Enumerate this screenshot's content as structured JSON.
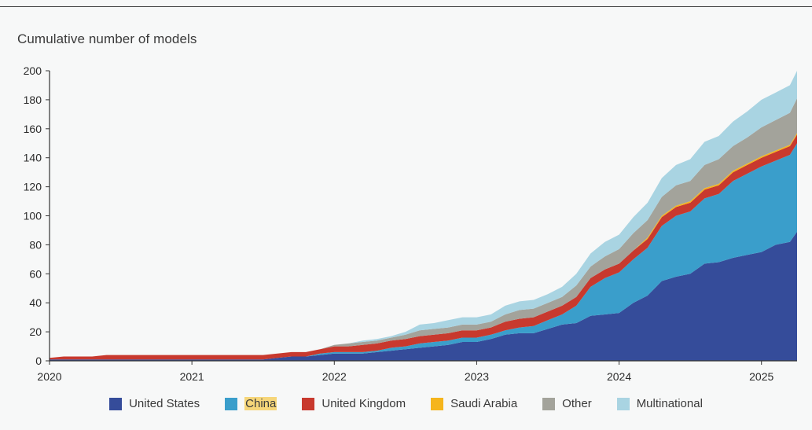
{
  "title": "Cumulative number of models",
  "chart_data": {
    "type": "area",
    "stacked": true,
    "title": "Cumulative number of models",
    "xlabel": "",
    "ylabel": "",
    "ylim": [
      0,
      200
    ],
    "xlim": [
      2020.0,
      2025.25
    ],
    "y_ticks": [
      0,
      20,
      40,
      60,
      80,
      100,
      120,
      140,
      160,
      180,
      200
    ],
    "x_ticks": [
      2020,
      2021,
      2022,
      2023,
      2024,
      2025
    ],
    "x_tick_labels": [
      "2020",
      "2021",
      "2022",
      "2023",
      "2024",
      "2025"
    ],
    "grid": false,
    "legend_position": "bottom",
    "x": [
      2020.0,
      2020.1,
      2020.2,
      2020.3,
      2020.4,
      2020.5,
      2020.6,
      2020.7,
      2020.8,
      2020.9,
      2021.0,
      2021.1,
      2021.2,
      2021.3,
      2021.4,
      2021.5,
      2021.6,
      2021.7,
      2021.8,
      2021.9,
      2022.0,
      2022.1,
      2022.2,
      2022.3,
      2022.4,
      2022.5,
      2022.6,
      2022.7,
      2022.8,
      2022.9,
      2023.0,
      2023.1,
      2023.2,
      2023.3,
      2023.4,
      2023.5,
      2023.6,
      2023.7,
      2023.8,
      2023.9,
      2024.0,
      2024.1,
      2024.2,
      2024.3,
      2024.4,
      2024.5,
      2024.6,
      2024.7,
      2024.8,
      2024.9,
      2025.0,
      2025.1,
      2025.2,
      2025.25
    ],
    "series": [
      {
        "name": "United States",
        "color": "#354c9a",
        "values": [
          1,
          1,
          1,
          1,
          1,
          1,
          1,
          1,
          1,
          1,
          1,
          1,
          1,
          1,
          1,
          1,
          2,
          3,
          3,
          4,
          5,
          5,
          5,
          6,
          7,
          8,
          9,
          10,
          11,
          13,
          13,
          15,
          18,
          19,
          19,
          22,
          25,
          26,
          31,
          32,
          33,
          40,
          45,
          55,
          58,
          60,
          67,
          68,
          71,
          73,
          75,
          80,
          82,
          89
        ]
      },
      {
        "name": "China",
        "color": "#3a9ecb",
        "values": [
          0,
          0,
          0,
          0,
          0,
          0,
          0,
          0,
          0,
          0,
          0,
          0,
          0,
          0,
          0,
          0,
          0,
          0,
          0,
          1,
          1,
          1,
          1,
          1,
          2,
          2,
          3,
          3,
          3,
          3,
          3,
          3,
          3,
          4,
          5,
          6,
          7,
          12,
          20,
          25,
          28,
          30,
          33,
          38,
          42,
          43,
          45,
          47,
          53,
          56,
          59,
          58,
          60,
          61
        ]
      },
      {
        "name": "United Kingdom",
        "color": "#c8392e",
        "values": [
          1,
          2,
          2,
          2,
          3,
          3,
          3,
          3,
          3,
          3,
          3,
          3,
          3,
          3,
          3,
          3,
          3,
          3,
          3,
          3,
          4,
          4,
          5,
          5,
          5,
          5,
          5,
          5,
          5,
          5,
          5,
          5,
          6,
          6,
          6,
          6,
          6,
          6,
          6,
          6,
          6,
          6,
          6,
          6,
          6,
          6,
          6,
          6,
          6,
          6,
          6,
          6,
          6,
          6
        ]
      },
      {
        "name": "Saudi Arabia",
        "color": "#f5b51c",
        "values": [
          0,
          0,
          0,
          0,
          0,
          0,
          0,
          0,
          0,
          0,
          0,
          0,
          0,
          0,
          0,
          0,
          0,
          0,
          0,
          0,
          0,
          0,
          0,
          0,
          0,
          0,
          0,
          0,
          0,
          0,
          0,
          0,
          0,
          0,
          0,
          0,
          0,
          0,
          0,
          0,
          0,
          0,
          1,
          1,
          1,
          1,
          1,
          1,
          1,
          1,
          1,
          1,
          1,
          1
        ]
      },
      {
        "name": "Other",
        "color": "#a3a39b",
        "values": [
          0,
          0,
          0,
          0,
          0,
          0,
          0,
          0,
          0,
          0,
          0,
          0,
          0,
          0,
          0,
          0,
          0,
          0,
          0,
          0,
          1,
          2,
          2,
          2,
          2,
          3,
          4,
          4,
          4,
          4,
          4,
          4,
          5,
          6,
          6,
          6,
          6,
          8,
          8,
          9,
          10,
          12,
          12,
          13,
          14,
          14,
          16,
          17,
          17,
          18,
          20,
          21,
          22,
          24
        ]
      },
      {
        "name": "Multinational",
        "color": "#a9d4e2",
        "values": [
          0,
          0,
          0,
          0,
          0,
          0,
          0,
          0,
          0,
          0,
          0,
          0,
          0,
          0,
          0,
          0,
          0,
          0,
          0,
          0,
          0,
          0,
          1,
          1,
          1,
          2,
          4,
          4,
          5,
          5,
          5,
          5,
          6,
          6,
          6,
          6,
          7,
          8,
          9,
          10,
          10,
          11,
          12,
          13,
          14,
          15,
          16,
          16,
          17,
          18,
          19,
          19,
          19,
          19
        ]
      }
    ]
  }
}
